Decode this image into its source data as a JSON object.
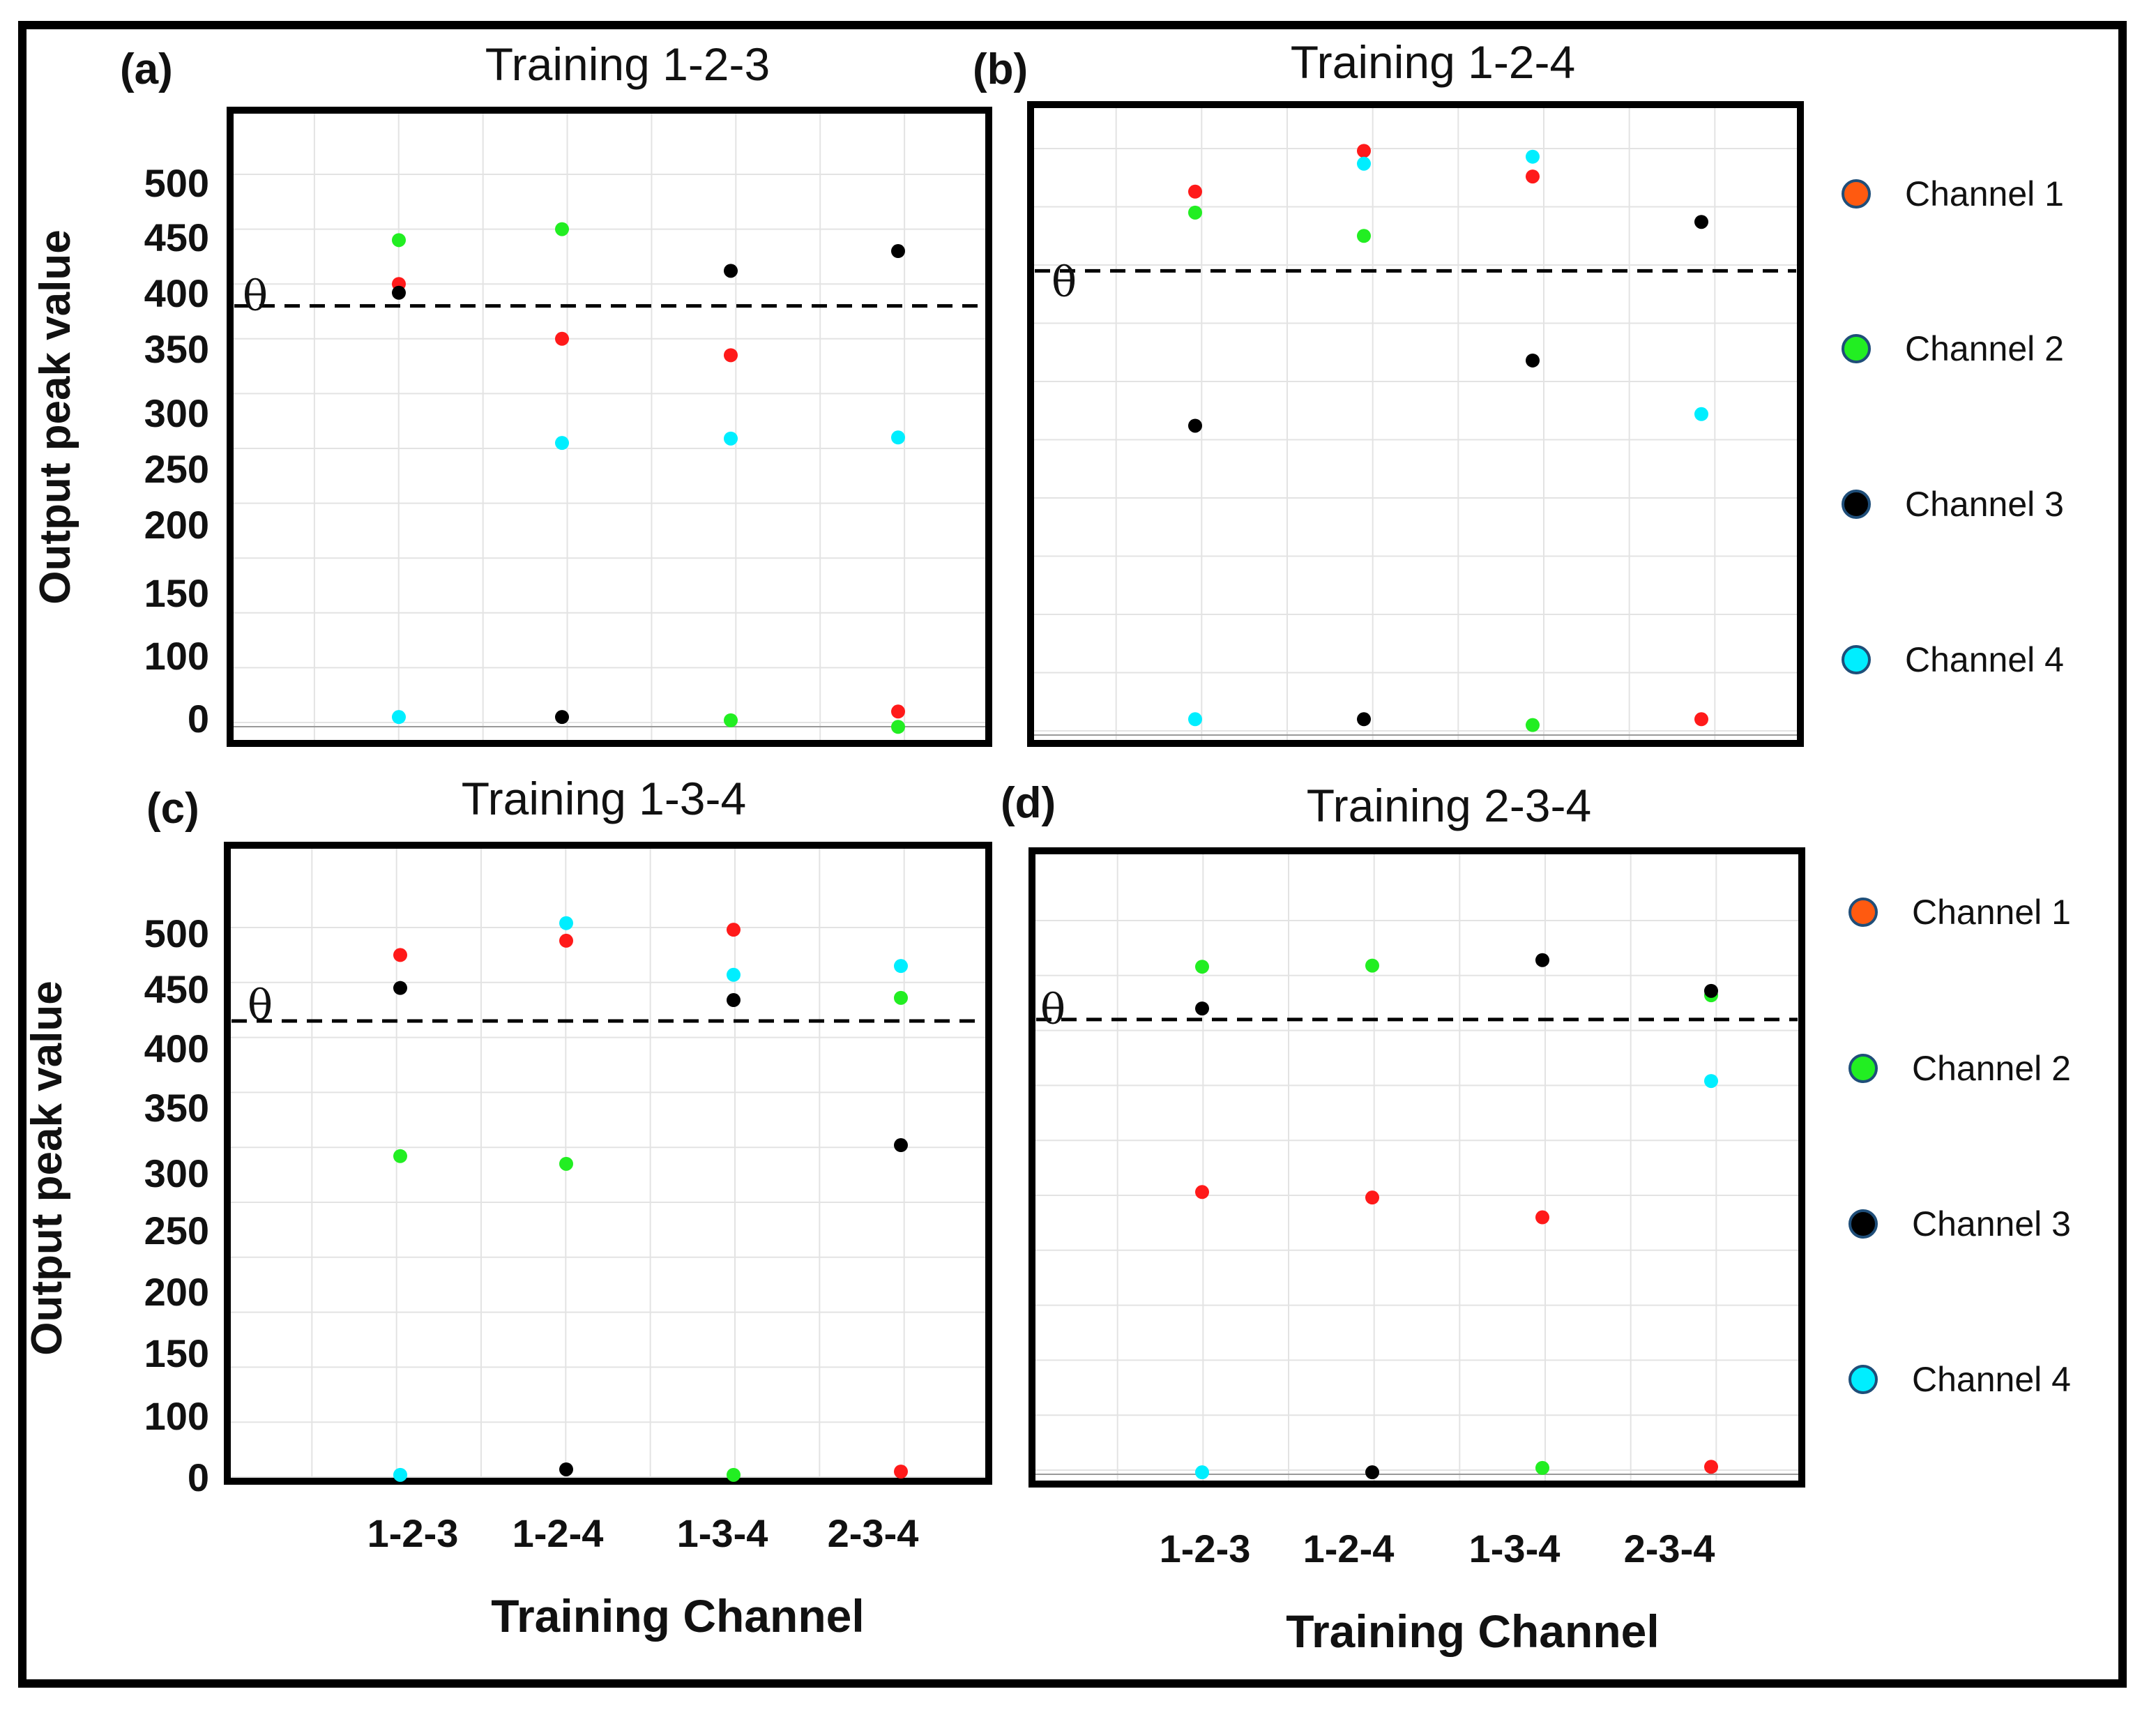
{
  "figure": {
    "y_axis_label": "Output peak value",
    "x_axis_label": "Training Channel",
    "threshold_symbol": "θ",
    "legend": [
      {
        "label": "Channel 1",
        "color": "#ff5a10"
      },
      {
        "label": "Channel 2",
        "color": "#22ee22"
      },
      {
        "label": "Channel 3",
        "color": "#000000"
      },
      {
        "label": "Channel 4",
        "color": "#00eeff"
      }
    ]
  },
  "chart_data": [
    {
      "type": "scatter",
      "panel": "(a)",
      "title": "Training 1-2-3",
      "categories": [
        "1-2-3",
        "1-2-4",
        "1-3-4",
        "2-3-4"
      ],
      "yticks": [
        "500",
        "450",
        "400",
        "350",
        "300",
        "250",
        "200",
        "150",
        "100",
        "0"
      ],
      "threshold": 380,
      "show_ticks": true,
      "show_xticks": false,
      "series": [
        {
          "name": "Channel 1",
          "color": "#ff1a1a",
          "values": [
            400,
            350,
            335,
            10
          ]
        },
        {
          "name": "Channel 2",
          "color": "#22ee22",
          "values": [
            440,
            450,
            2,
            -4
          ]
        },
        {
          "name": "Channel 3",
          "color": "#000000",
          "values": [
            392,
            5,
            412,
            430
          ]
        },
        {
          "name": "Channel 4",
          "color": "#00eeff",
          "values": [
            5,
            255,
            259,
            260
          ]
        }
      ]
    },
    {
      "type": "scatter",
      "panel": "(b)",
      "title": "Training 1-2-4",
      "categories": [
        "1-2-3",
        "1-2-4",
        "1-3-4",
        "2-3-4"
      ],
      "yticks": [],
      "threshold": 395,
      "show_ticks": false,
      "show_xticks": false,
      "series": [
        {
          "name": "Channel 1",
          "color": "#ff1a1a",
          "values": [
            463,
            498,
            476,
            10
          ]
        },
        {
          "name": "Channel 2",
          "color": "#22ee22",
          "values": [
            445,
            425,
            5,
            null
          ]
        },
        {
          "name": "Channel 3",
          "color": "#000000",
          "values": [
            262,
            10,
            318,
            437
          ]
        },
        {
          "name": "Channel 4",
          "color": "#00eeff",
          "values": [
            10,
            487,
            493,
            272
          ]
        }
      ]
    },
    {
      "type": "scatter",
      "panel": "(c)",
      "title": "Training 1-3-4",
      "categories": [
        "1-2-3",
        "1-2-4",
        "1-3-4",
        "2-3-4"
      ],
      "yticks": [
        "500",
        "450",
        "400",
        "350",
        "300",
        "250",
        "200",
        "150",
        "100",
        "0"
      ],
      "threshold": 415,
      "show_ticks": true,
      "show_xticks": true,
      "series": [
        {
          "name": "Channel 1",
          "color": "#ff1a1a",
          "values": [
            475,
            488,
            498,
            5
          ]
        },
        {
          "name": "Channel 2",
          "color": "#22ee22",
          "values": [
            292,
            285,
            2,
            436
          ]
        },
        {
          "name": "Channel 3",
          "color": "#000000",
          "values": [
            445,
            7,
            434,
            302
          ]
        },
        {
          "name": "Channel 4",
          "color": "#00eeff",
          "values": [
            2,
            504,
            457,
            465
          ]
        }
      ]
    },
    {
      "type": "scatter",
      "panel": "(d)",
      "title": "Training 2-3-4",
      "categories": [
        "1-2-3",
        "1-2-4",
        "1-3-4",
        "2-3-4"
      ],
      "yticks": [],
      "threshold": 410,
      "show_ticks": false,
      "show_xticks": true,
      "series": [
        {
          "name": "Channel 1",
          "color": "#ff1a1a",
          "values": [
            253,
            248,
            230,
            3
          ]
        },
        {
          "name": "Channel 2",
          "color": "#22ee22",
          "values": [
            458,
            459,
            2,
            432
          ]
        },
        {
          "name": "Channel 3",
          "color": "#000000",
          "values": [
            420,
            -2,
            464,
            436
          ]
        },
        {
          "name": "Channel 4",
          "color": "#00eeff",
          "values": [
            -2,
            null,
            null,
            354
          ]
        }
      ]
    }
  ]
}
